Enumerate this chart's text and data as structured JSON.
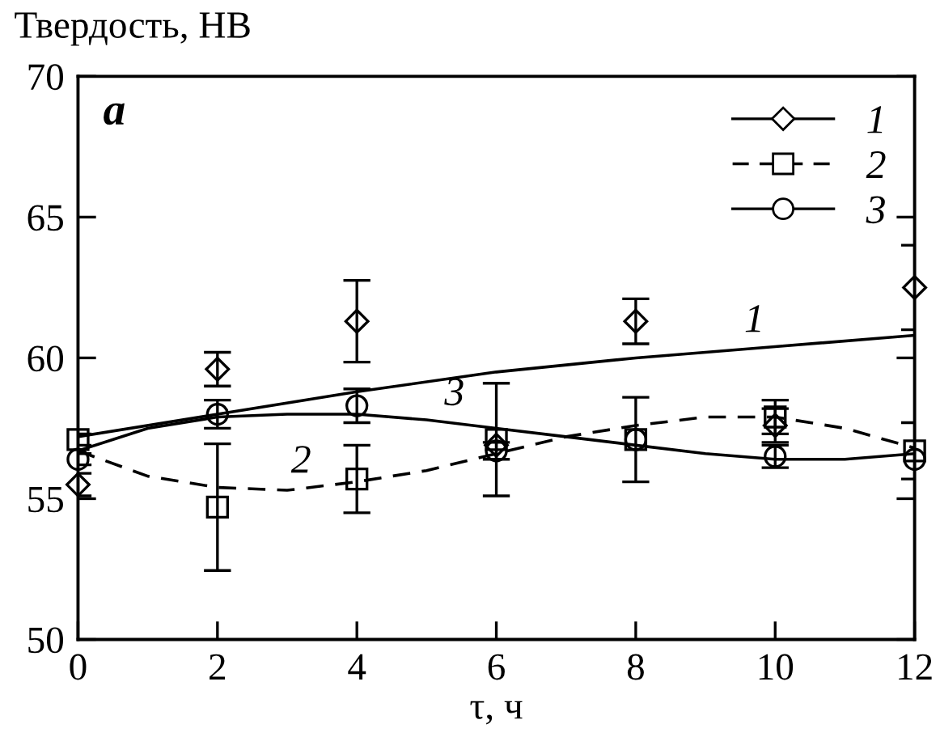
{
  "chart_data": {
    "type": "scatter",
    "xlabel": "τ, ч",
    "ylabel": "Твердость, НВ",
    "xlim": [
      0,
      12
    ],
    "ylim": [
      50,
      70
    ],
    "xticks": [
      0,
      2,
      4,
      6,
      8,
      10,
      12
    ],
    "yticks": [
      50,
      55,
      60,
      65,
      70
    ],
    "grid": false,
    "legend": "top right",
    "annotations": [
      "a",
      {
        "text": "1",
        "x": 9.7,
        "y": 60.3
      },
      {
        "text": "2",
        "x": 3.2,
        "y": 55.3
      },
      {
        "text": "3",
        "x": 5.4,
        "y": 57.7
      }
    ],
    "series": [
      {
        "name": "1",
        "color": "#000000",
        "marker": "diamond",
        "line_style": "solid",
        "x": [
          0,
          2,
          4,
          6,
          8,
          10,
          12
        ],
        "values": [
          55.5,
          59.6,
          61.3,
          56.9,
          61.3,
          57.6,
          62.5
        ],
        "errors": [
          0.4,
          0.6,
          1.45,
          null,
          0.8,
          0.6,
          1.5
        ]
      },
      {
        "name": "2",
        "color": "#000000",
        "marker": "square",
        "line_style": "dashed",
        "x": [
          0,
          2,
          4,
          6,
          8,
          10,
          12
        ],
        "values": [
          57.1,
          54.7,
          55.7,
          57.1,
          57.1,
          57.9,
          56.7
        ],
        "errors": [
          0.2,
          2.25,
          1.2,
          2.0,
          1.5,
          0.6,
          1.0
        ]
      },
      {
        "name": "3",
        "color": "#000000",
        "marker": "circle",
        "line_style": "solid",
        "x": [
          0,
          2,
          4,
          6,
          8,
          10,
          12
        ],
        "values": [
          56.4,
          58.0,
          58.3,
          56.7,
          57.1,
          56.5,
          56.4
        ],
        "errors": [
          0.2,
          0.5,
          0.6,
          0.3,
          null,
          0.4,
          null
        ]
      },
      {
        "type": "line",
        "color": "#000000",
        "line_style": "solid",
        "x": [
          0,
          2,
          4,
          6,
          8,
          10,
          12
        ],
        "values": [
          57.2,
          58.0,
          58.8,
          59.5,
          60.0,
          60.4,
          60.8
        ]
      },
      {
        "type": "line",
        "color": "#000000",
        "line_style": "dashed",
        "x": [
          0,
          1,
          2,
          3,
          4,
          5,
          6,
          7,
          8,
          9,
          10,
          11,
          12
        ],
        "values": [
          56.7,
          55.8,
          55.4,
          55.3,
          55.6,
          56.0,
          56.6,
          57.2,
          57.6,
          57.9,
          57.9,
          57.5,
          56.8
        ]
      },
      {
        "type": "line",
        "color": "#000000",
        "line_style": "solid",
        "x": [
          0,
          1,
          2,
          3,
          4,
          5,
          6,
          7,
          8,
          9,
          10,
          11,
          12
        ],
        "values": [
          56.7,
          57.5,
          57.9,
          58.0,
          58.0,
          57.8,
          57.5,
          57.2,
          56.9,
          56.6,
          56.4,
          56.4,
          56.6
        ]
      }
    ]
  }
}
